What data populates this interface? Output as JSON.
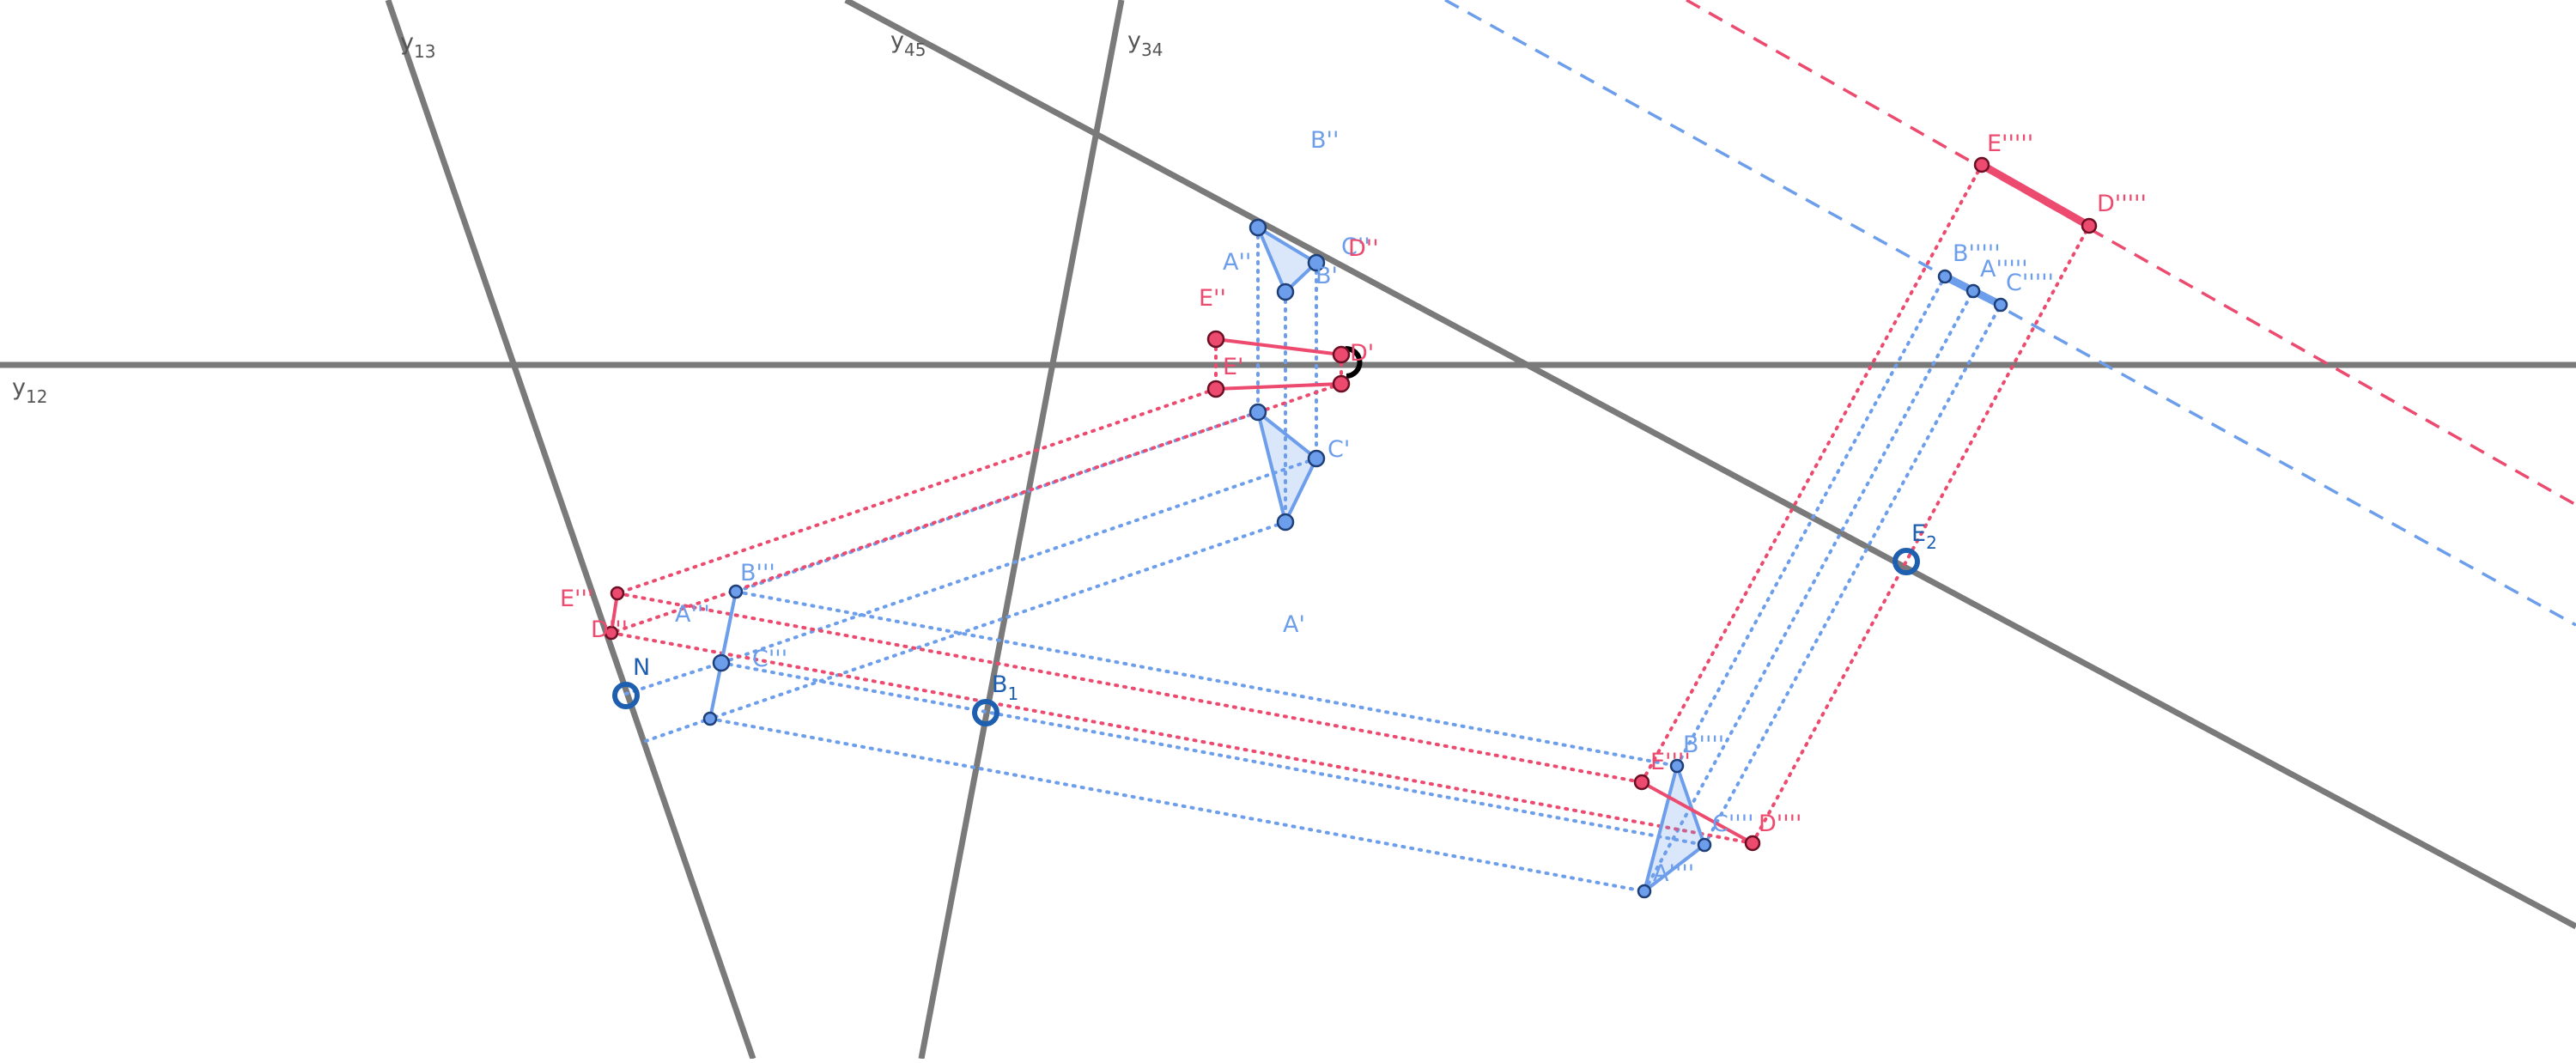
{
  "colors": {
    "background": "#ffffff",
    "axis": "#7a7a7a",
    "blue": "#6d9eeb",
    "blue_dark": "#1e5fb0",
    "red": "#ec4a6e",
    "black": "#000000"
  },
  "axis_labels": {
    "y12": {
      "base": "y",
      "sub": "12"
    },
    "y13": {
      "base": "y",
      "sub": "13"
    },
    "y45": {
      "base": "y",
      "sub": "45"
    },
    "y34": {
      "base": "y",
      "sub": "34"
    }
  },
  "point_labels": {
    "A1": "A'",
    "B1": "B'",
    "C1": "C'",
    "A2": "A''",
    "B2": "B''",
    "C2": "C''",
    "D1": "D'",
    "E1": "E'",
    "D2": "D''",
    "E2": "E''",
    "A3": "A'''",
    "B3": "B'''",
    "C3": "C'''",
    "D3": "D'''",
    "E3": "E'''",
    "A4": "A''''",
    "B4": "B''''",
    "C4": "C''''",
    "D4": "D''''",
    "E4": "E''''",
    "A5": "A'''''",
    "B5": "B'''''",
    "C5": "C'''''",
    "D5": "D'''''",
    "E5": "E'''''"
  },
  "marker_labels": {
    "N": "N",
    "B1m": {
      "base": "B",
      "sub": "1"
    },
    "E2m": {
      "base": "E",
      "sub": "2"
    }
  }
}
